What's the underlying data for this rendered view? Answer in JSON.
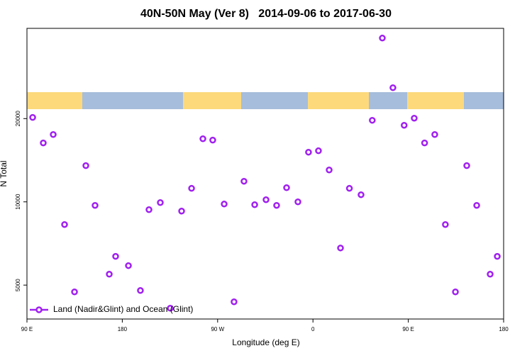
{
  "chart_data": {
    "type": "scatter",
    "title": "40N-50N May (Ver 8)   2014-09-06 to 2017-06-30",
    "xlabel": "Longitude (deg E)",
    "ylabel": "N Total",
    "xlim": [
      90,
      540
    ],
    "xticks": [
      {
        "value": 90,
        "label": "90 E"
      },
      180,
      {
        "value": 270,
        "label": "90 W"
      },
      {
        "value": 360,
        "label": "0"
      },
      {
        "value": 450,
        "label": "90 E"
      },
      {
        "value": 540,
        "label": "180"
      }
    ],
    "ylim": [
      3770,
      42400
    ],
    "yscale": "log",
    "yticks": [
      5000,
      10000,
      20000
    ],
    "legend": "bottom-left",
    "series": [
      {
        "name": "Land (Nadir&Glint) and Ocean (Glint)",
        "color": "#a020f0",
        "x": [
          95.4,
          105.4,
          114.8,
          125.5,
          134.9,
          145.6,
          154.3,
          167.7,
          173.7,
          185.8,
          197.1,
          205.2,
          215.9,
          225.3,
          236,
          245.4,
          256.1,
          265.4,
          276.2,
          285.5,
          294.9,
          305,
          315.7,
          325.7,
          335.1,
          345.8,
          355.8,
          365.2,
          375.3,
          386,
          394.4,
          405.4,
          416,
          425.5,
          435.5,
          446.1,
          455.6,
          465.4,
          475,
          485,
          494.5,
          505.2,
          514.6,
          527.3,
          534
        ],
        "values": [
          20200,
          16330,
          17520,
          8280,
          4725,
          13520,
          9710,
          5475,
          6350,
          5880,
          4780,
          9370,
          9940,
          4125,
          9260,
          11190,
          16910,
          16720,
          9820,
          4350,
          11870,
          9765,
          10180,
          9710,
          11250,
          10000,
          15120,
          15300,
          13040,
          6810,
          11190,
          10610,
          19720,
          39110,
          25870,
          18920,
          20070,
          16330,
          17520,
          8280,
          4725,
          13520,
          9710,
          5475,
          6350
        ]
      }
    ]
  }
}
